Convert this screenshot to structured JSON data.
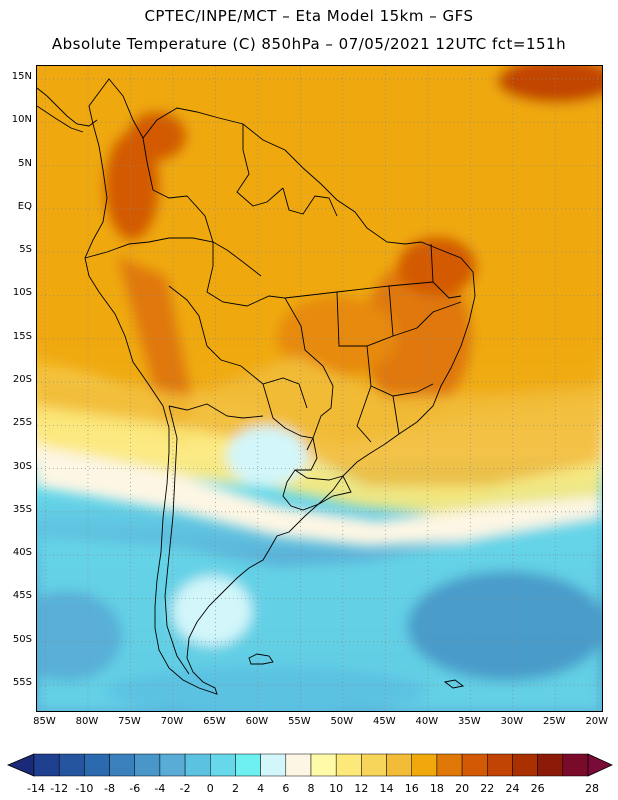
{
  "header": {
    "title_line1": "CPTEC/INPE/MCT –  Eta Model 15km – GFS",
    "title_line2": "Absolute Temperature (C) 850hPa – 07/05/2021 12UTC fct=151h"
  },
  "map": {
    "lat_labels": [
      "15N",
      "10N",
      "5N",
      "EQ",
      "5S",
      "10S",
      "15S",
      "20S",
      "25S",
      "30S",
      "35S",
      "40S",
      "45S",
      "50S",
      "55S"
    ],
    "lon_labels": [
      "85W",
      "80W",
      "75W",
      "70W",
      "65W",
      "60W",
      "55W",
      "50W",
      "45W",
      "40W",
      "35W",
      "30W",
      "25W",
      "20W"
    ],
    "lat_values": [
      15,
      10,
      5,
      0,
      -5,
      -10,
      -15,
      -20,
      -25,
      -30,
      -35,
      -40,
      -45,
      -50,
      -55
    ],
    "lon_values": [
      -85,
      -80,
      -75,
      -70,
      -65,
      -60,
      -55,
      -50,
      -45,
      -40,
      -35,
      -30,
      -25,
      -20
    ],
    "lat_range": [
      -58,
      16.5
    ],
    "lon_range": [
      -86,
      -19.5
    ],
    "gridlines": "dotted",
    "field": "850hPa temperature (C)"
  },
  "colorbar": {
    "levels": [
      "-14",
      "-12",
      "-10",
      "-8",
      "-6",
      "-4",
      "-2",
      "0",
      "2",
      "4",
      "6",
      "8",
      "10",
      "12",
      "14",
      "16",
      "18",
      "20",
      "22",
      "24",
      "26",
      "28"
    ],
    "colors": [
      "#1f3f8f",
      "#25559f",
      "#2b6aaf",
      "#3a80bd",
      "#4897c8",
      "#58acd6",
      "#5cc2e2",
      "#66d8ea",
      "#6ef0f0",
      "#d2f6fa",
      "#fdf6e4",
      "#fefaa8",
      "#fce97a",
      "#f7d45a",
      "#f2bc38",
      "#f0a80c",
      "#e07808",
      "#d35a05",
      "#c24404",
      "#a83001",
      "#8b1a08",
      "#7a0a2a"
    ],
    "arrow_left_color": "#1a2a78",
    "arrow_right_color": "#7a0a38"
  }
}
